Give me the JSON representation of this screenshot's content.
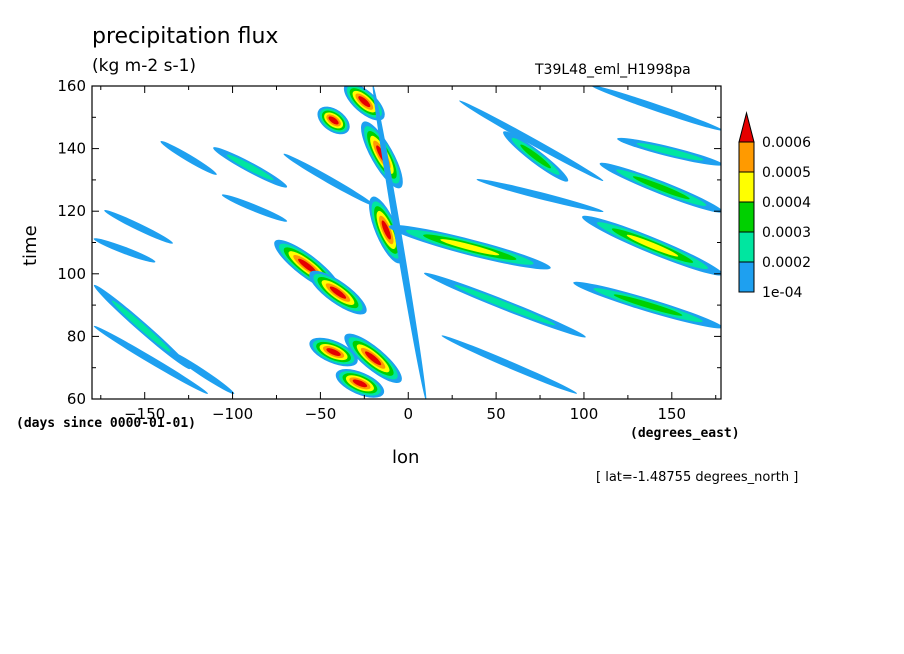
{
  "chart_data": {
    "type": "heatmap",
    "title": "precipitation flux",
    "units": "(kg m-2 s-1)",
    "run_label": "T39L48_eml_H1998pa",
    "xlabel": "lon",
    "xunits": "(degrees_east)",
    "ylabel": "time",
    "yunits": "(days since 0000-01-01)",
    "annotation": "[ lat=-1.48755 degrees_north ]",
    "xlim": [
      -180,
      178
    ],
    "ylim": [
      60,
      160
    ],
    "xticks": [
      -150,
      -100,
      -50,
      0,
      50,
      100,
      150
    ],
    "yticks": [
      60,
      80,
      100,
      120,
      140,
      160
    ],
    "colorbar": {
      "levels": [
        0.0001,
        0.0002,
        0.0003,
        0.0004,
        0.0005,
        0.0006
      ],
      "labels": [
        "1e-04",
        "0.0002",
        "0.0003",
        "0.0004",
        "0.0005",
        "0.0006"
      ],
      "colors": [
        "#1ea0f0",
        "#00e6a0",
        "#00d000",
        "#ffff00",
        "#ff9a00",
        "#e60000"
      ]
    },
    "features": [
      {
        "kind": "streak",
        "lon": [
          -178,
          -145
        ],
        "time": [
          111,
          104
        ],
        "peak": 0.00018
      },
      {
        "kind": "streak",
        "lon": [
          -178,
          -125
        ],
        "time": [
          96,
          70
        ],
        "peak": 0.00022
      },
      {
        "kind": "streak",
        "lon": [
          -178,
          -115
        ],
        "time": [
          83,
          62
        ],
        "peak": 0.00018
      },
      {
        "kind": "streak",
        "lon": [
          -135,
          -100
        ],
        "time": [
          75,
          62
        ],
        "peak": 0.00015
      },
      {
        "kind": "streak",
        "lon": [
          -172,
          -135
        ],
        "time": [
          120,
          110
        ],
        "peak": 0.00012
      },
      {
        "kind": "streak",
        "lon": [
          -140,
          -110
        ],
        "time": [
          142,
          132
        ],
        "peak": 0.00014
      },
      {
        "kind": "streak",
        "lon": [
          -110,
          -70
        ],
        "time": [
          140,
          128
        ],
        "peak": 0.00025
      },
      {
        "kind": "streak",
        "lon": [
          -70,
          -20
        ],
        "time": [
          138,
          122
        ],
        "peak": 0.00012
      },
      {
        "kind": "streak",
        "lon": [
          -105,
          -70
        ],
        "time": [
          125,
          117
        ],
        "peak": 0.00012
      },
      {
        "kind": "streak",
        "lon": [
          -75,
          -40
        ],
        "time": [
          110,
          95
        ],
        "peak": 0.00065
      },
      {
        "kind": "streak",
        "lon": [
          -55,
          -25
        ],
        "time": [
          100,
          88
        ],
        "peak": 0.00062
      },
      {
        "kind": "streak",
        "lon": [
          -40,
          -15
        ],
        "time": [
          68,
          62
        ],
        "peak": 0.00065
      },
      {
        "kind": "streak",
        "lon": [
          -35,
          -5
        ],
        "time": [
          80,
          66
        ],
        "peak": 0.00062
      },
      {
        "kind": "streak",
        "lon": [
          -55,
          -30
        ],
        "time": [
          78,
          72
        ],
        "peak": 0.0006
      },
      {
        "kind": "streak",
        "lon": [
          -35,
          -15
        ],
        "time": [
          160,
          150
        ],
        "peak": 0.00062
      },
      {
        "kind": "streak",
        "lon": [
          -25,
          -5
        ],
        "time": [
          148,
          128
        ],
        "peak": 0.00062
      },
      {
        "kind": "streak",
        "lon": [
          -20,
          -5
        ],
        "time": [
          124,
          104
        ],
        "peak": 0.00062
      },
      {
        "kind": "streak",
        "lon": [
          -50,
          -35
        ],
        "time": [
          152,
          146
        ],
        "peak": 0.00062
      },
      {
        "kind": "streak",
        "lon": [
          -10,
          80
        ],
        "time": [
          115,
          102
        ],
        "peak": 0.0004
      },
      {
        "kind": "streak",
        "lon": [
          10,
          100
        ],
        "time": [
          100,
          80
        ],
        "peak": 0.0002
      },
      {
        "kind": "streak",
        "lon": [
          20,
          95
        ],
        "time": [
          80,
          62
        ],
        "peak": 0.00015
      },
      {
        "kind": "streak",
        "lon": [
          30,
          110
        ],
        "time": [
          155,
          130
        ],
        "peak": 0.0001
      },
      {
        "kind": "streak",
        "lon": [
          40,
          110
        ],
        "time": [
          130,
          120
        ],
        "peak": 0.00012
      },
      {
        "kind": "streak",
        "lon": [
          55,
          90
        ],
        "time": [
          145,
          130
        ],
        "peak": 0.0003
      },
      {
        "kind": "streak",
        "lon": [
          100,
          178
        ],
        "time": [
          118,
          100
        ],
        "peak": 0.00045
      },
      {
        "kind": "streak",
        "lon": [
          95,
          178
        ],
        "time": [
          97,
          83
        ],
        "peak": 0.00035
      },
      {
        "kind": "streak",
        "lon": [
          110,
          178
        ],
        "time": [
          135,
          120
        ],
        "peak": 0.00035
      },
      {
        "kind": "streak",
        "lon": [
          120,
          178
        ],
        "time": [
          143,
          135
        ],
        "peak": 0.0002
      },
      {
        "kind": "streak",
        "lon": [
          105,
          178
        ],
        "time": [
          160,
          146
        ],
        "peak": 0.00015
      },
      {
        "kind": "streak",
        "lon": [
          -20,
          10
        ],
        "time": [
          160,
          60
        ],
        "peak": 0.00018
      }
    ]
  }
}
